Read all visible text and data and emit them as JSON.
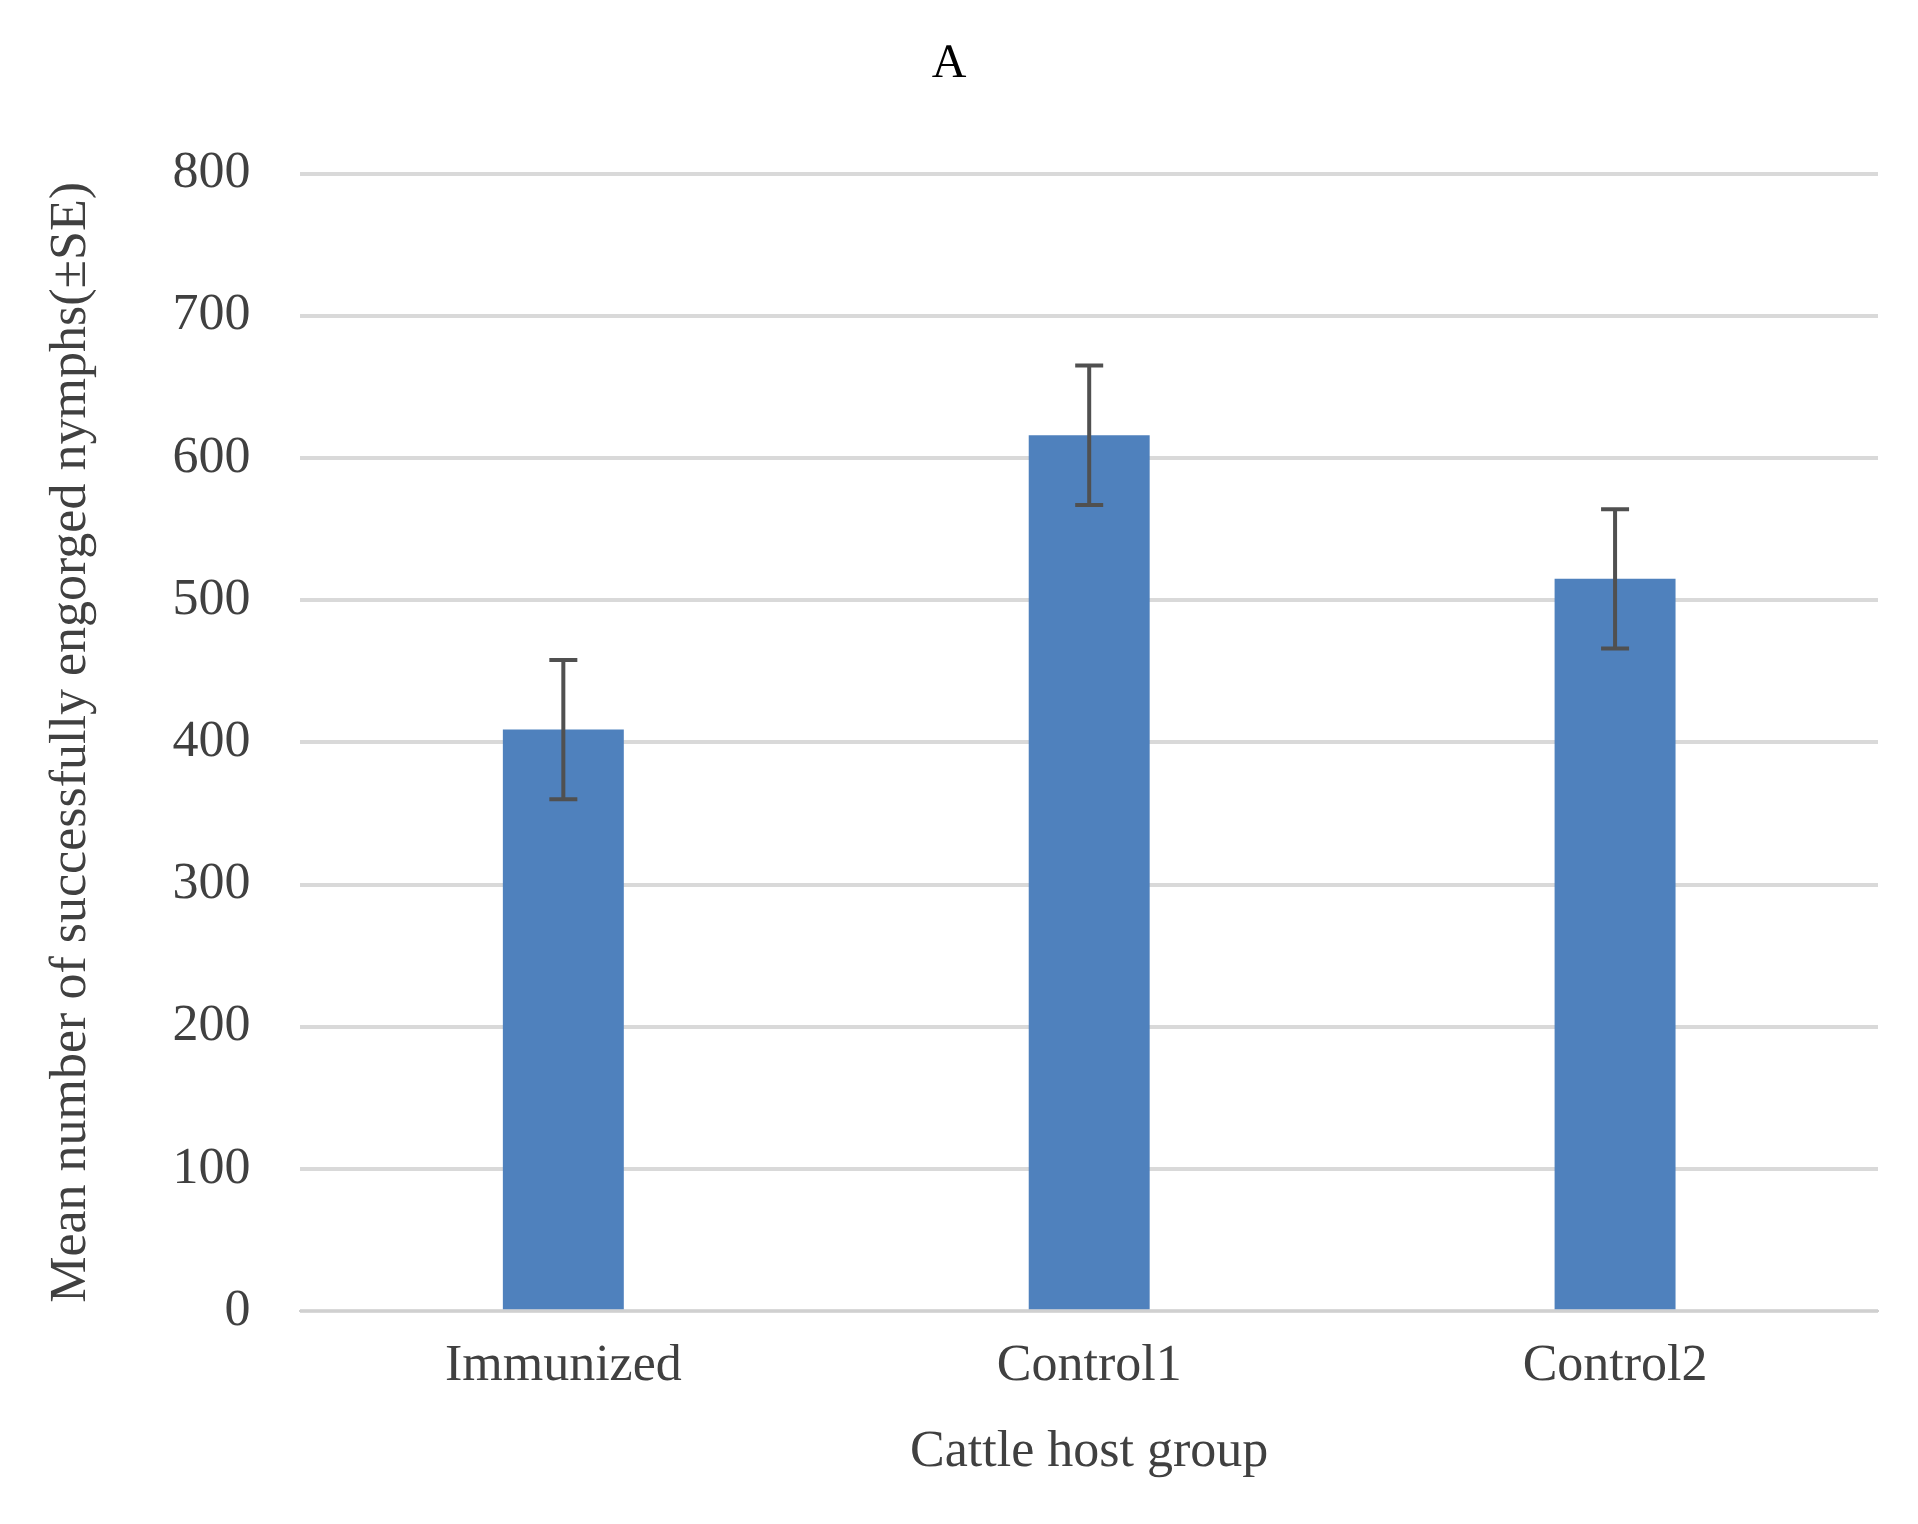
{
  "chart_data": {
    "type": "bar",
    "title": "A",
    "xlabel": "Cattle host group",
    "ylabel": "Mean number of successfully engorged nymphs(±SE)",
    "categories": [
      "Immunized",
      "Control1",
      "Control2"
    ],
    "values": [
      409,
      616,
      515
    ],
    "errors": [
      49,
      49,
      49
    ],
    "color": "#4f81bd",
    "ylim": [
      0,
      800
    ],
    "yticks": [
      0,
      100,
      200,
      300,
      400,
      500,
      600,
      700,
      800
    ],
    "grid": "y"
  }
}
